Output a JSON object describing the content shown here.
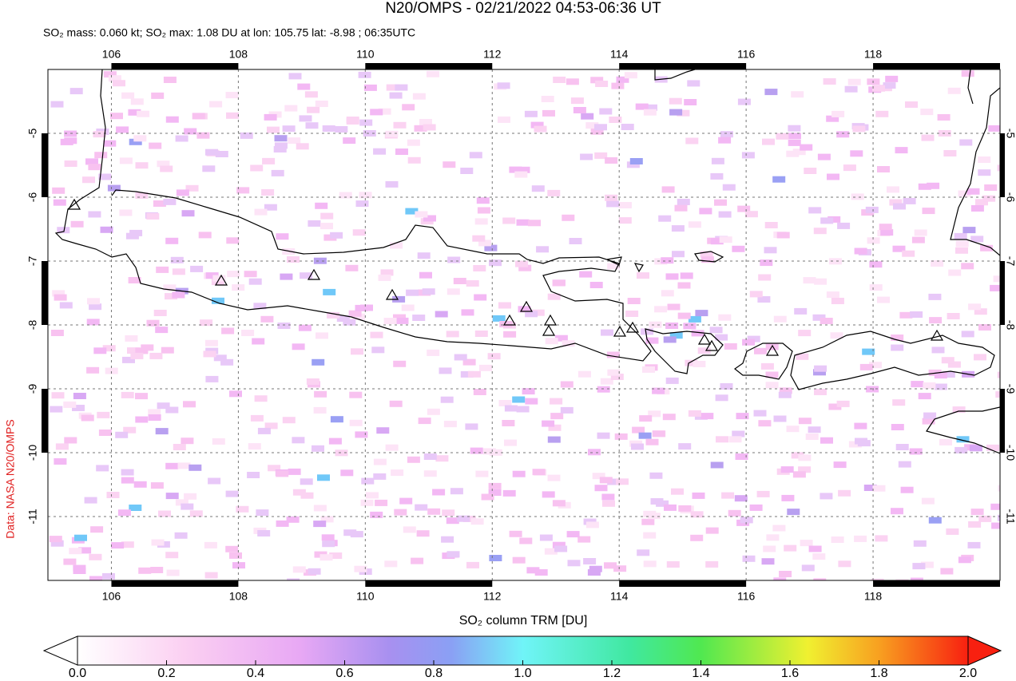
{
  "title": "N20/OMPS - 02/21/2022 04:53-06:36 UT",
  "subtitle": "SO₂ mass: 0.060 kt; SO₂ max: 1.08 DU at lon: 105.75 lat: -8.98 ; 06:35UTC",
  "source": "Data: NASA N20/OMPS",
  "map": {
    "lonlim": [
      105,
      120
    ],
    "latlim": [
      -12,
      -4
    ],
    "lonticks": [
      106,
      108,
      110,
      112,
      114,
      116,
      118
    ],
    "latticks": [
      -5,
      -6,
      -7,
      -8,
      -9,
      -10,
      -11
    ]
  },
  "colorbar": {
    "label": "SO₂ column TRM [DU]",
    "lim": [
      0,
      2
    ],
    "ticks": [
      {
        "value": 0,
        "label": "0.0"
      },
      {
        "value": 0.2,
        "label": "0.2"
      },
      {
        "value": 0.4,
        "label": "0.4"
      },
      {
        "value": 0.6,
        "label": "0.6"
      },
      {
        "value": 0.8,
        "label": "0.8"
      },
      {
        "value": 1,
        "label": "1.0"
      },
      {
        "value": 1.2,
        "label": "1.2"
      },
      {
        "value": 1.4,
        "label": "1.4"
      },
      {
        "value": 1.6,
        "label": "1.6"
      },
      {
        "value": 1.8,
        "label": "1.8"
      },
      {
        "value": 2,
        "label": "2.0"
      }
    ]
  }
}
